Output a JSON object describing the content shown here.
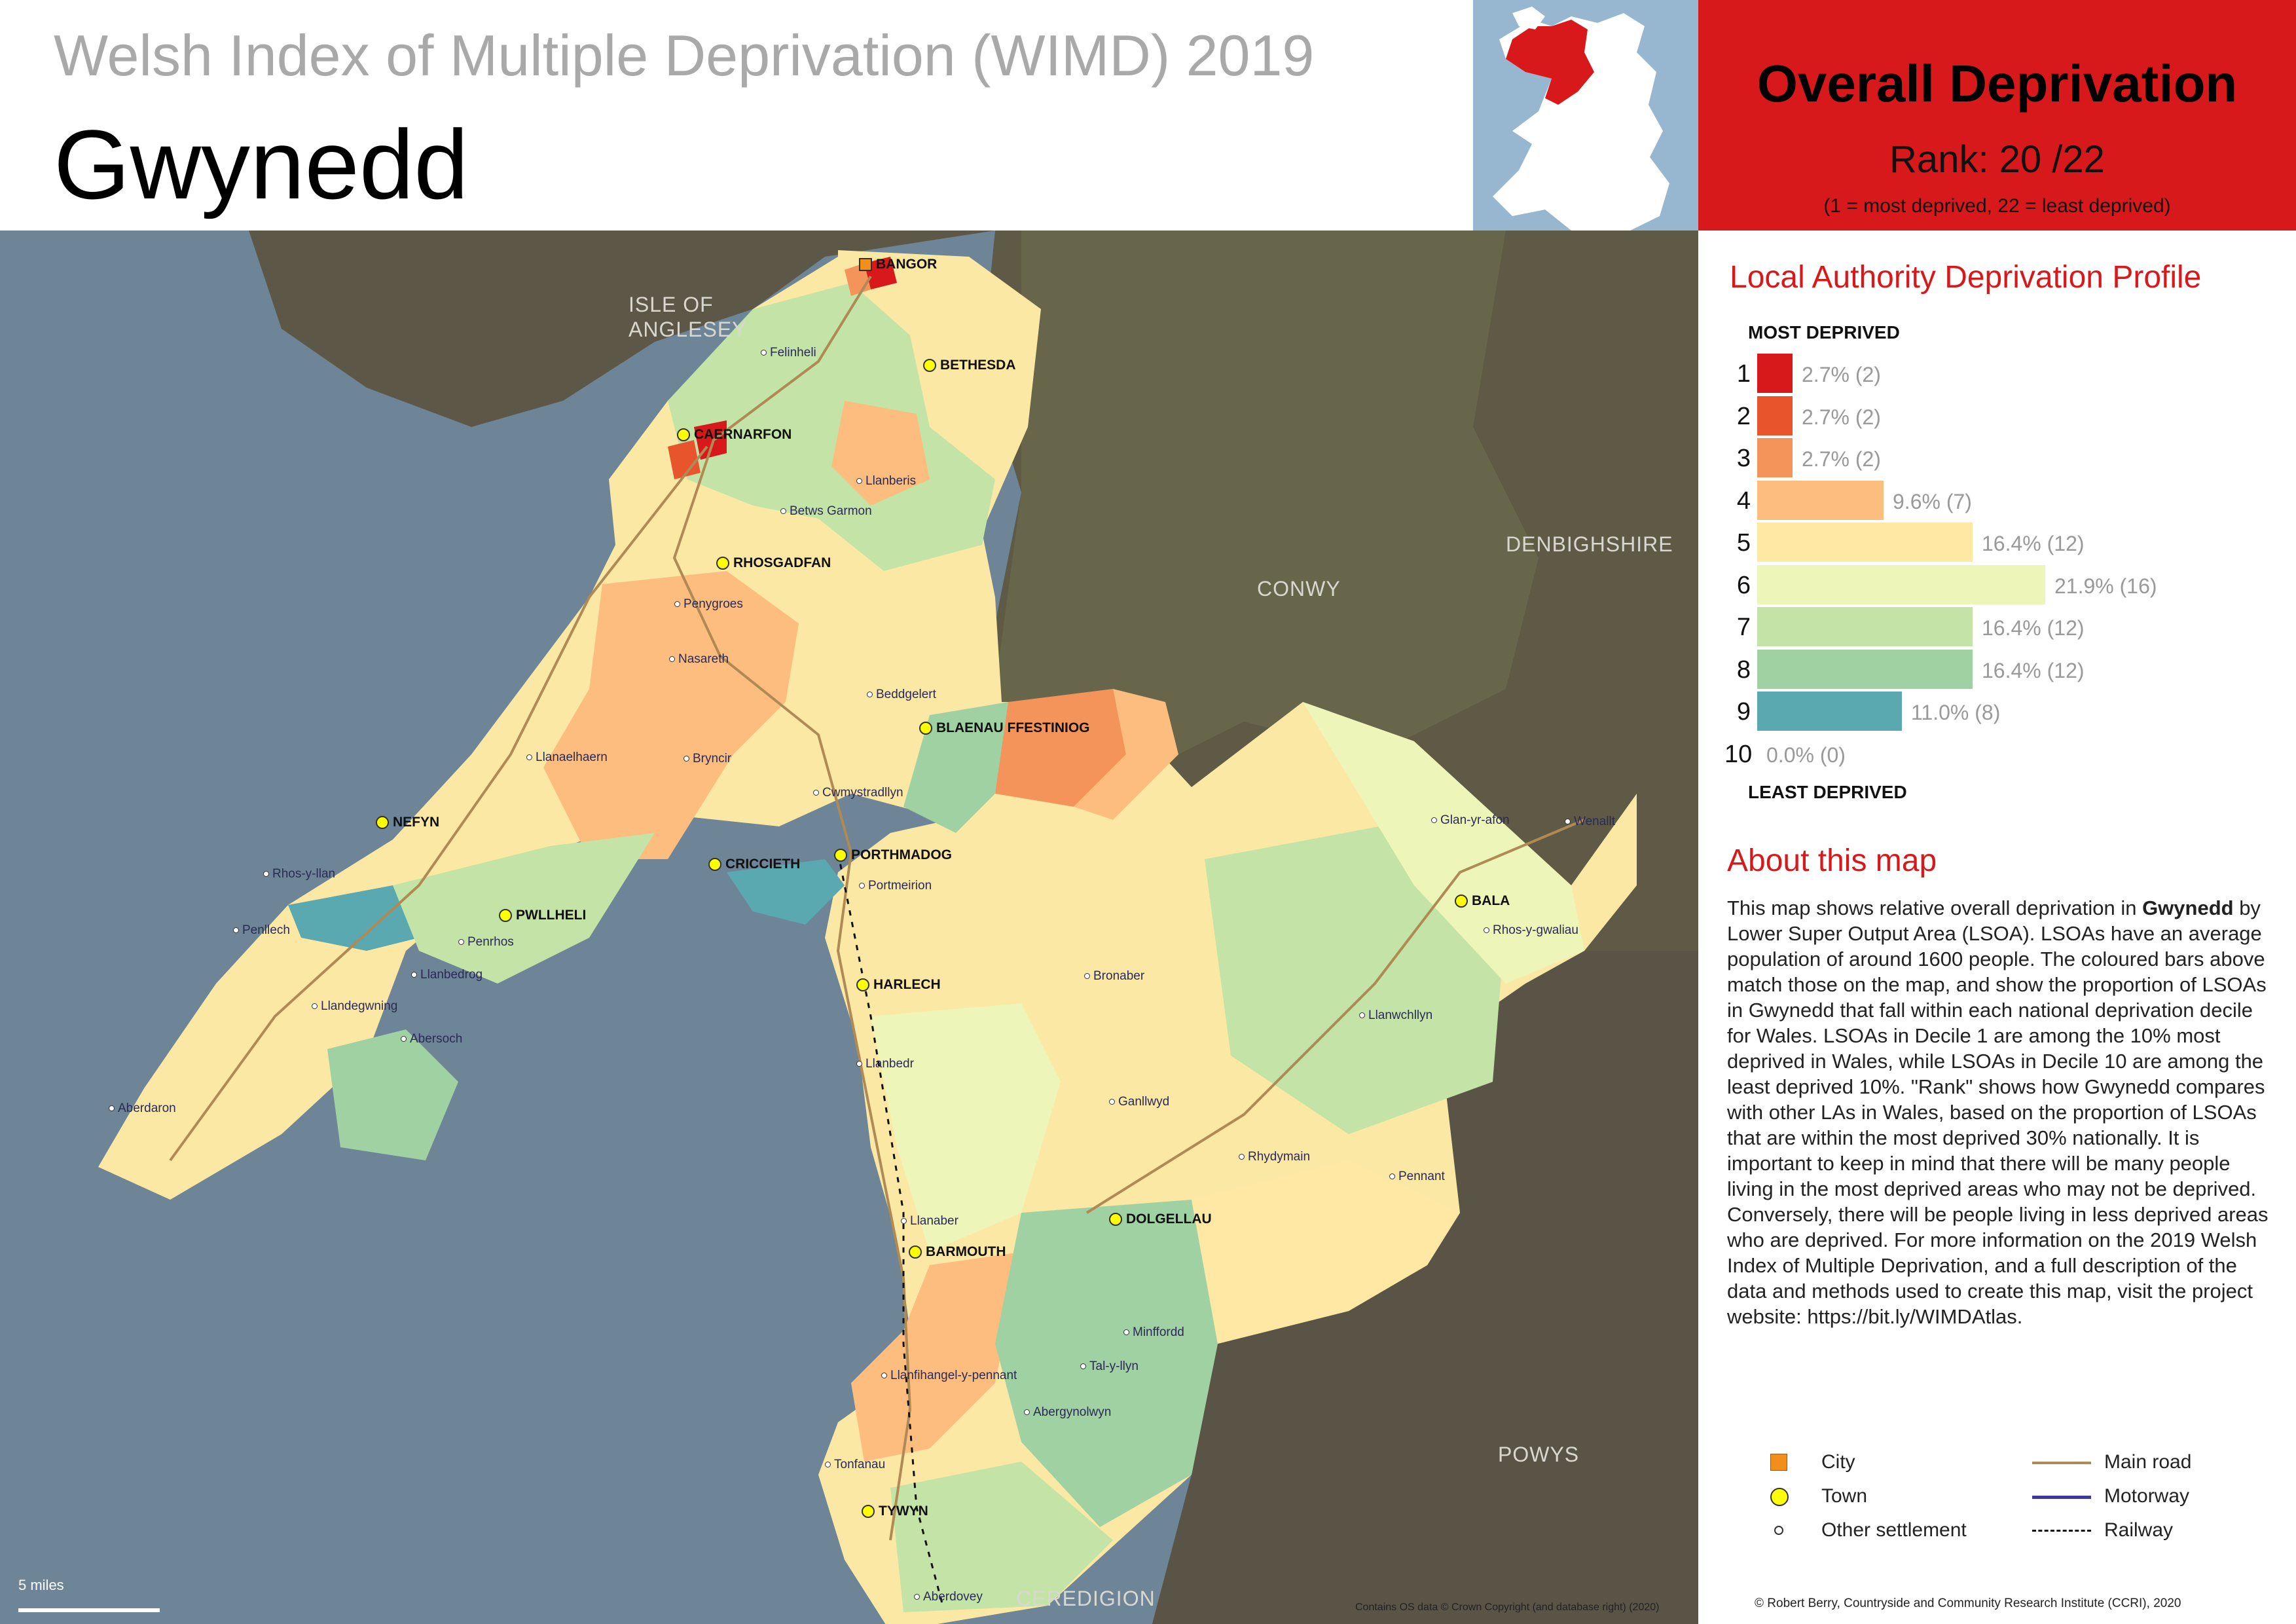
{
  "header": {
    "subtitle": "Welsh Index of Multiple Deprivation (WIMD) 2019",
    "la_name": "Gwynedd"
  },
  "rank_box": {
    "heading": "Overall Deprivation",
    "rank_text": "Rank: 20 /22",
    "rank_value": 20,
    "rank_total": 22,
    "note": "(1 =   most deprived, 22 = least deprived)",
    "color": "#d7191c"
  },
  "profile": {
    "title": "Local Authority Deprivation Profile",
    "most_label": "MOST DEPRIVED",
    "least_label": "LEAST DEPRIVED"
  },
  "chart_data": {
    "type": "bar",
    "orientation": "horizontal",
    "title": "Local Authority Deprivation Profile",
    "categories": [
      "1",
      "2",
      "3",
      "4",
      "5",
      "6",
      "7",
      "8",
      "9",
      "10"
    ],
    "values": [
      2.7,
      2.7,
      2.7,
      9.6,
      16.4,
      21.9,
      16.4,
      16.4,
      11.0,
      0.0
    ],
    "counts": [
      2,
      2,
      2,
      7,
      12,
      16,
      12,
      12,
      8,
      0
    ],
    "labels": [
      "2.7% (2)",
      "2.7% (2)",
      "2.7% (2)",
      "9.6% (7)",
      "16.4% (12)",
      "21.9% (16)",
      "16.4% (12)",
      "16.4% (12)",
      "11.0% (8)",
      "0.0% (0)"
    ],
    "colors": [
      "#d7191c",
      "#e8552d",
      "#f4945a",
      "#fdbd7e",
      "#fee8a4",
      "#eef5b8",
      "#c3e4a6",
      "#9fd1a3",
      "#5aa8b0",
      "#2b83ba"
    ]
  },
  "about": {
    "title": "About this map",
    "text_before": "This map shows relative overall deprivation in ",
    "text_bold": "Gwynedd",
    "text_after": " by Lower Super Output Area (LSOA). LSOAs have an average population of around 1600 people. The coloured bars above match those on the map, and show the proportion of LSOAs in Gwynedd that fall within each national deprivation decile for Wales. LSOAs in Decile 1 are among the 10% most deprived in Wales, while LSOAs in Decile 10 are among the least deprived 10%. \"Rank\" shows how Gwynedd compares with other LAs in Wales, based on the proportion of LSOAs that are within the most deprived 30% nationally. It is important to keep in mind that there will be many people living in the most deprived areas who may not be deprived. Conversely, there will be people living in less deprived areas who are deprived. For more information on the 2019 Welsh Index of Multiple Deprivation, and a full description of the data and methods used to create this map, visit the project website: https://bit.ly/WIMDAtlas."
  },
  "legend": {
    "city": "City",
    "town": "Town",
    "other": "Other settlement",
    "main_road": "Main road",
    "motorway": "Motorway",
    "railway": "Railway",
    "city_color": "#f28e1c",
    "town_color": "#ffff00",
    "road_color": "#b08a55",
    "motorway_color": "#3e3a9c"
  },
  "map": {
    "neighbours": [
      "ISLE OF ANGLESEY",
      "CONWY",
      "DENBIGHSHIRE",
      "POWYS",
      "CEREDIGION"
    ],
    "cities": [
      "BANGOR"
    ],
    "towns": [
      "BETHESDA",
      "CAERNARFON",
      "RHOSGADFAN",
      "BLAENAU FFESTINIOG",
      "NEFYN",
      "CRICCIETH",
      "PORTHMADOG",
      "PWLLHELI",
      "HARLECH",
      "BALA",
      "DOLGELLAU",
      "BARMOUTH",
      "TYWYN"
    ],
    "settlements": [
      "Felinheli",
      "Llanberis",
      "Betws Garmon",
      "Penygroes",
      "Nasareth",
      "Beddgelert",
      "Llanaelhaern",
      "Bryncir",
      "Cwmystradllyn",
      "Rhos-y-llan",
      "Penllech",
      "Penrhos",
      "Llanbedrog",
      "Llandegwning",
      "Abersoch",
      "Aberdaron",
      "Portmeirion",
      "Bronaber",
      "Llanbedr",
      "Ganllwyd",
      "Rhydymain",
      "Glan-yr-afon",
      "Wenallt",
      "Rhos-y-gwaliau",
      "Llanwchllyn",
      "Pennant",
      "Llanaber",
      "Minffordd",
      "Tal-y-llyn",
      "Llanfihangel-y-pennant",
      "Abergynolwyn",
      "Tonfanau",
      "Aberdovey"
    ]
  },
  "scale_label": "5 miles",
  "credits": {
    "os": "Contains OS data © Crown Copyright (and database right) (2020)",
    "author": "© Robert Berry, Countryside and Community Research Institute (CCRI), 2020"
  }
}
